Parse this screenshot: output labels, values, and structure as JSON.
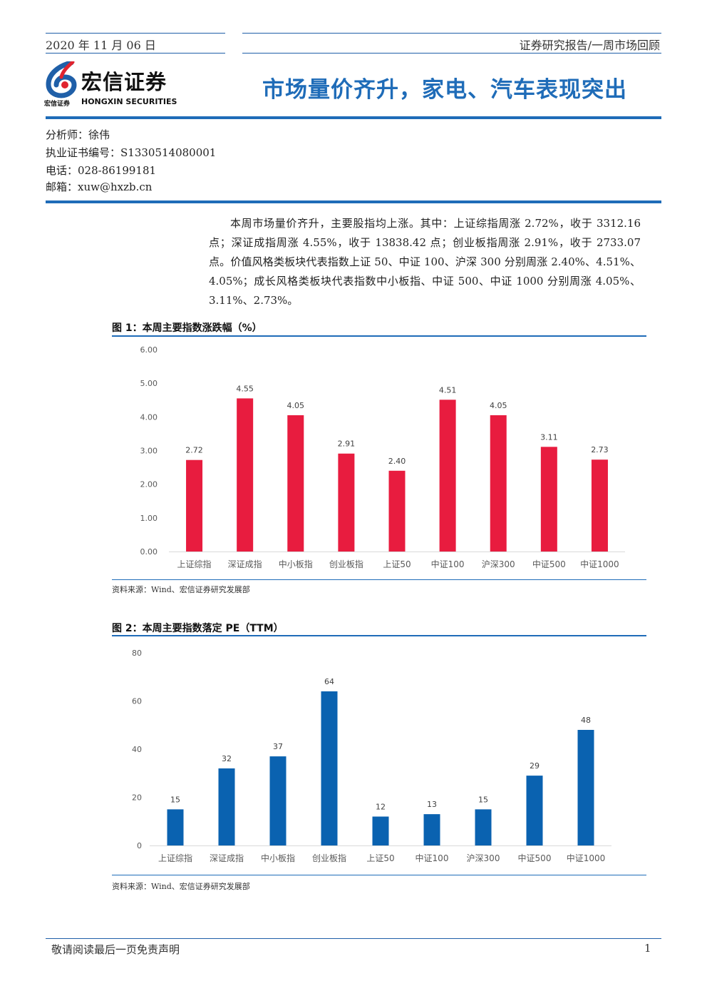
{
  "header": {
    "date": "2020 年 11 月 06 日",
    "report_type": "证券研究报告/一周市场回顾"
  },
  "logo": {
    "cn": "宏信证券",
    "cn_small": "宏信证券",
    "en": "HONGXIN SECURITIES",
    "colors": {
      "blue": "#1f5fa8",
      "red": "#e0242f"
    }
  },
  "title": "市场量价齐升，家电、汽车表现突出",
  "author": {
    "analyst": "分析师：徐伟",
    "license": "执业证书编号：S1330514080001",
    "phone": "电话：028-86199181",
    "email": "邮箱：xuw@hxzb.cn"
  },
  "summary": "本周市场量价齐升，主要股指均上涨。其中：上证综指周涨 2.72%，收于 3312.16 点；深证成指周涨 4.55%，收于 13838.42 点；创业板指周涨 2.91%，收于 2733.07 点。价值风格类板块代表指数上证 50、中证 100、沪深 300 分别周涨 2.40%、4.51%、4.05%；成长风格类板块代表指数中小板指、中证 500、中证 1000 分别周涨 4.05%、3.11%、2.73%。",
  "figure1": {
    "title": "图 1：本周主要指数涨跌幅（%）",
    "source": "资料来源：Wind、宏信证券研究发展部"
  },
  "figure2": {
    "title": "图 2：本周主要指数落定 PE（TTM）",
    "source": "资料来源：Wind、宏信证券研究发展部"
  },
  "chart_data": [
    {
      "type": "bar",
      "categories": [
        "上证综指",
        "深证成指",
        "中小板指",
        "创业板指",
        "上证50",
        "中证100",
        "沪深300",
        "中证500",
        "中证1000"
      ],
      "values": [
        2.72,
        4.55,
        4.05,
        2.91,
        2.4,
        4.51,
        4.05,
        3.11,
        2.73
      ],
      "value_labels": [
        "2.72",
        "4.55",
        "4.05",
        "2.91",
        "2.40",
        "4.51",
        "4.05",
        "3.11",
        "2.73"
      ],
      "y_ticks": [
        "0.00",
        "1.00",
        "2.00",
        "3.00",
        "4.00",
        "5.00",
        "6.00"
      ],
      "ylim": [
        0,
        6
      ],
      "color": "#e81c3f",
      "grid": false
    },
    {
      "type": "bar",
      "categories": [
        "上证综指",
        "深证成指",
        "中小板指",
        "创业板指",
        "上证50",
        "中证100",
        "沪深300",
        "中证500",
        "中证1000"
      ],
      "values": [
        15,
        32,
        37,
        64,
        12,
        13,
        15,
        29,
        48
      ],
      "value_labels": [
        "15",
        "32",
        "37",
        "64",
        "12",
        "13",
        "15",
        "29",
        "48"
      ],
      "y_ticks": [
        "0",
        "20",
        "40",
        "60",
        "80"
      ],
      "ylim": [
        0,
        80
      ],
      "color": "#0a62b0",
      "grid": false
    }
  ],
  "footer": {
    "note": "敬请阅读最后一页免责声明",
    "page": "1"
  }
}
